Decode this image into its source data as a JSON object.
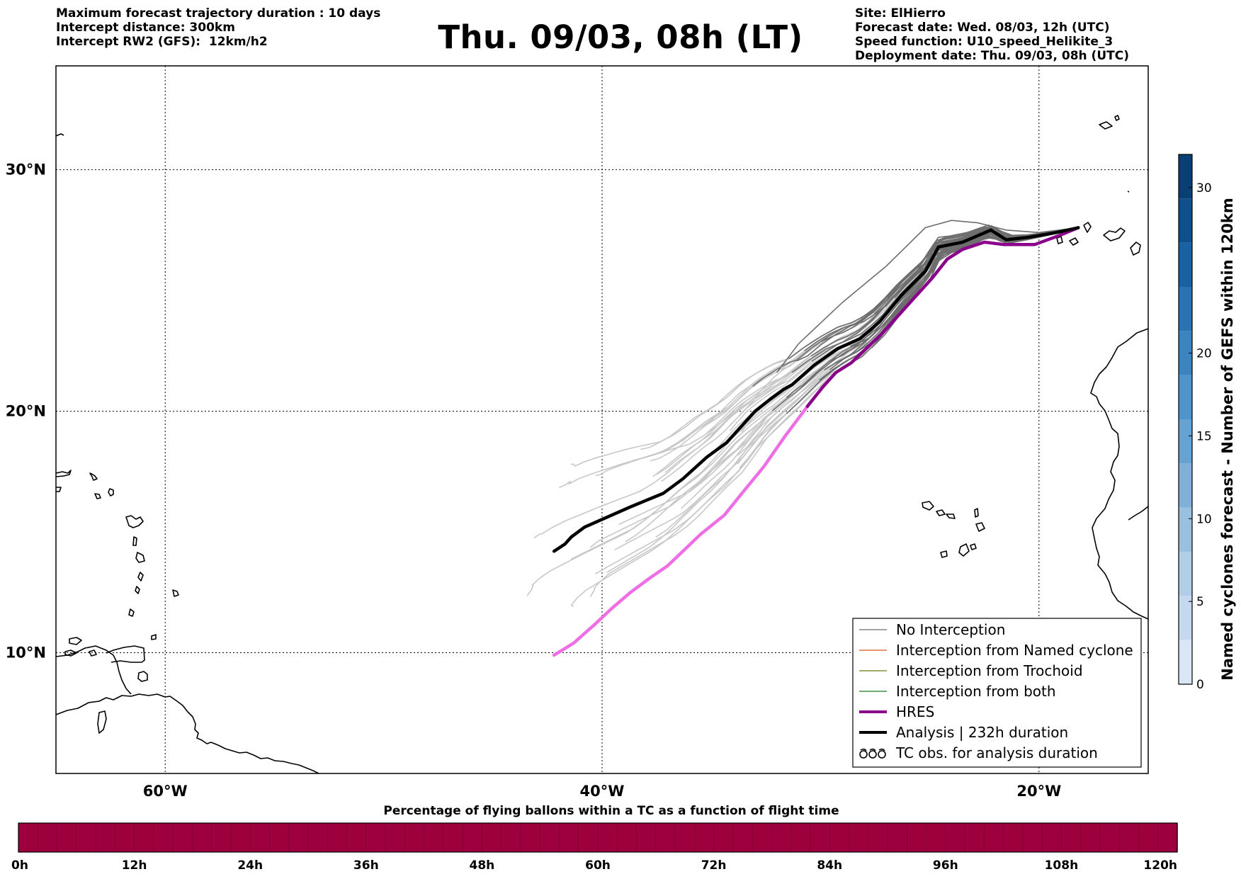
{
  "header": {
    "left_lines": [
      "Maximum forecast trajectory duration : 10 days",
      "Intercept distance: 300km",
      "Intercept RW2 (GFS):  12km/h2"
    ],
    "title": "Thu. 09/03, 08h (LT)",
    "right_lines": [
      "Site: ElHierro",
      "Forecast date: Wed. 08/03, 12h (UTC)",
      "Speed function: U10_speed_Helikite_3",
      "Deployment date: Thu. 09/03, 08h (UTC)"
    ]
  },
  "map": {
    "lon_range": [
      -65,
      -15
    ],
    "lat_range": [
      5,
      34.3
    ],
    "lon_ticks": [
      {
        "value": -60,
        "label": "60°W"
      },
      {
        "value": -40,
        "label": "40°W"
      },
      {
        "value": -20,
        "label": "20°W"
      }
    ],
    "lat_ticks": [
      {
        "value": 10,
        "label": "10°N"
      },
      {
        "value": 20,
        "label": "20°N"
      },
      {
        "value": 30,
        "label": "30°N"
      }
    ],
    "grid": "dotted",
    "colors": {
      "ensemble_light": "#c8c8c8",
      "ensemble_dark": "#6e6e6e",
      "analysis": "#000000",
      "hres_far": "#ee6ee6",
      "hres_near": "#8b008b",
      "coast": "#000000"
    }
  },
  "chart_data": {
    "type": "line",
    "x_axis": "longitude (°W negative)",
    "y_axis": "latitude (°N)",
    "series": [
      {
        "name": "Analysis | 232h duration",
        "points": [
          [
            -18.2,
            27.6
          ],
          [
            -19.2,
            27.4
          ],
          [
            -20.5,
            27.2
          ],
          [
            -21.5,
            27.1
          ],
          [
            -22.2,
            27.5
          ],
          [
            -23.5,
            27.0
          ],
          [
            -24.6,
            26.8
          ],
          [
            -25.2,
            25.8
          ],
          [
            -26.3,
            24.8
          ],
          [
            -27.3,
            23.7
          ],
          [
            -28.2,
            23.0
          ],
          [
            -29.2,
            22.6
          ],
          [
            -30.3,
            21.9
          ],
          [
            -31.3,
            21.1
          ],
          [
            -31.7,
            20.9
          ],
          [
            -32.3,
            20.5
          ],
          [
            -33.0,
            20.0
          ],
          [
            -33.5,
            19.5
          ],
          [
            -34.3,
            18.7
          ],
          [
            -35.2,
            18.1
          ],
          [
            -36.3,
            17.2
          ],
          [
            -37.2,
            16.6
          ],
          [
            -38.0,
            16.3
          ],
          [
            -38.8,
            16.0
          ],
          [
            -39.8,
            15.6
          ],
          [
            -40.8,
            15.2
          ],
          [
            -41.4,
            14.8
          ],
          [
            -41.4,
            14.8
          ],
          [
            -41.7,
            14.5
          ],
          [
            -42.2,
            14.2
          ]
        ]
      },
      {
        "name": "HRES",
        "points": [
          [
            -18.2,
            27.6
          ],
          [
            -19.0,
            27.3
          ],
          [
            -20.2,
            26.9
          ],
          [
            -21.6,
            26.9
          ],
          [
            -22.5,
            27.0
          ],
          [
            -23.5,
            26.7
          ],
          [
            -24.2,
            26.3
          ],
          [
            -24.9,
            25.5
          ],
          [
            -25.7,
            24.7
          ],
          [
            -26.4,
            24.0
          ],
          [
            -27.2,
            23.2
          ],
          [
            -27.9,
            22.6
          ],
          [
            -28.6,
            22.0
          ],
          [
            -29.3,
            21.6
          ],
          [
            -29.9,
            21.0
          ],
          [
            -30.6,
            20.2
          ],
          [
            -31.6,
            19.0
          ],
          [
            -32.6,
            17.7
          ],
          [
            -33.6,
            16.6
          ],
          [
            -34.4,
            15.7
          ],
          [
            -35.5,
            14.9
          ],
          [
            -36.3,
            14.2
          ],
          [
            -37.0,
            13.6
          ],
          [
            -37.8,
            13.1
          ],
          [
            -38.7,
            12.5
          ],
          [
            -39.6,
            11.8
          ],
          [
            -40.3,
            11.2
          ],
          [
            -41.3,
            10.4
          ],
          [
            -42.2,
            9.9
          ]
        ]
      },
      {
        "name": "No Interception",
        "points": [
          [
            -18.2,
            27.6
          ],
          [
            -20.0,
            27.4
          ],
          [
            -21.5,
            27.5
          ],
          [
            -22.8,
            27.8
          ],
          [
            -24.0,
            27.9
          ],
          [
            -25.2,
            27.6
          ],
          [
            -27.0,
            26.0
          ],
          [
            -29.0,
            24.5
          ],
          [
            -31.0,
            22.8
          ],
          [
            -32.0,
            21.6
          ]
        ]
      }
    ]
  },
  "legend": {
    "items": [
      {
        "label": "No Interception",
        "color": "#6e6e6e",
        "width": 1.3,
        "symbol": "line"
      },
      {
        "label": "Interception from Named cyclone",
        "color": "#e2501e",
        "width": 1.3,
        "symbol": "line"
      },
      {
        "label": "Interception from Trochoid",
        "color": "#6b7a10",
        "width": 1.3,
        "symbol": "line"
      },
      {
        "label": "Interception from both",
        "color": "#1a7a1a",
        "width": 1.3,
        "symbol": "line"
      },
      {
        "label": "HRES",
        "color": "#8b008b",
        "width": 4,
        "symbol": "line"
      },
      {
        "label": "Analysis | 232h duration",
        "color": "#000000",
        "width": 4,
        "symbol": "line"
      },
      {
        "label": "TC obs. for analysis duration",
        "color": "#000000",
        "width": 1.5,
        "symbol": "cyclone-icon"
      }
    ]
  },
  "colorbar_right": {
    "label": "Named cyclones forecast - Number of GEFS within 120km",
    "range": [
      0,
      32
    ],
    "ticks": [
      0,
      5,
      10,
      15,
      20,
      30
    ],
    "colors": [
      "#d9e6f5",
      "#c4d9ee",
      "#b1cde7",
      "#9ac0e0",
      "#80b0d8",
      "#66a2d2",
      "#4f94cb",
      "#3b84bf",
      "#2a73b2",
      "#1a61a1",
      "#0f4f8c",
      "#0a3f74"
    ]
  },
  "colorbar_bottom": {
    "title": "Percentage of flying ballons within a TC as a function of flight time",
    "ticks": [
      "0h",
      "12h",
      "24h",
      "36h",
      "48h",
      "60h",
      "72h",
      "84h",
      "96h",
      "108h",
      "120h"
    ],
    "bins": 60,
    "color": "#9d003d"
  }
}
